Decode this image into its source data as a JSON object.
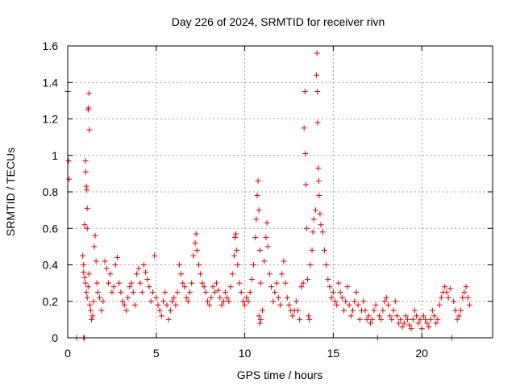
{
  "chart_data": {
    "type": "scatter",
    "title": "Day 226 of 2024, SRMTID for receiver rivn",
    "xlabel": "GPS time / hours",
    "ylabel": "SRMTID / TECUs",
    "xlim": [
      0,
      24
    ],
    "ylim": [
      0,
      1.6
    ],
    "xticks": [
      0,
      5,
      10,
      15,
      20
    ],
    "xtick_labels": [
      "0",
      "5",
      "10",
      "15",
      "20"
    ],
    "yticks": [
      0,
      0.2,
      0.4,
      0.6,
      0.8,
      1.0,
      1.2,
      1.4,
      1.6
    ],
    "ytick_labels": [
      "0",
      "0.2",
      "0.4",
      "0.6",
      "0.8",
      "1",
      "1.2",
      "1.4",
      "1.6"
    ],
    "grid": true,
    "marker": "+",
    "color": "#e00000",
    "series": [
      {
        "name": "SRMTID",
        "points": [
          [
            0.0,
            1.35
          ],
          [
            0.05,
            0.97
          ],
          [
            0.08,
            0.87
          ],
          [
            0.5,
            0.0
          ],
          [
            0.9,
            0.0
          ],
          [
            0.95,
            0.0
          ],
          [
            0.85,
            0.45
          ],
          [
            0.9,
            0.4
          ],
          [
            0.95,
            0.62
          ],
          [
            1.0,
            0.97
          ],
          [
            1.02,
            0.91
          ],
          [
            1.05,
            0.83
          ],
          [
            1.08,
            0.81
          ],
          [
            1.1,
            0.6
          ],
          [
            1.15,
            1.25
          ],
          [
            1.18,
            1.26
          ],
          [
            1.2,
            1.34
          ],
          [
            1.22,
            1.14
          ],
          [
            1.1,
            0.71
          ],
          [
            0.9,
            0.36
          ],
          [
            0.95,
            0.33
          ],
          [
            1.0,
            0.3
          ],
          [
            1.05,
            0.25
          ],
          [
            1.1,
            0.22
          ],
          [
            1.15,
            0.28
          ],
          [
            1.2,
            0.35
          ],
          [
            1.25,
            0.18
          ],
          [
            1.3,
            0.15
          ],
          [
            1.35,
            0.1
          ],
          [
            1.4,
            0.12
          ],
          [
            1.45,
            0.2
          ],
          [
            1.5,
            0.5
          ],
          [
            1.55,
            0.56
          ],
          [
            1.6,
            0.42
          ],
          [
            1.65,
            0.3
          ],
          [
            1.7,
            0.25
          ],
          [
            1.8,
            0.22
          ],
          [
            1.9,
            0.15
          ],
          [
            2.0,
            0.2
          ],
          [
            2.1,
            0.42
          ],
          [
            2.2,
            0.38
          ],
          [
            2.3,
            0.3
          ],
          [
            2.4,
            0.35
          ],
          [
            2.5,
            0.25
          ],
          [
            2.6,
            0.28
          ],
          [
            2.7,
            0.4
          ],
          [
            2.8,
            0.44
          ],
          [
            2.9,
            0.3
          ],
          [
            3.0,
            0.25
          ],
          [
            3.1,
            0.2
          ],
          [
            3.2,
            0.18
          ],
          [
            3.3,
            0.15
          ],
          [
            3.4,
            0.22
          ],
          [
            3.5,
            0.28
          ],
          [
            3.6,
            0.3
          ],
          [
            3.7,
            0.25
          ],
          [
            3.8,
            0.18
          ],
          [
            3.9,
            0.35
          ],
          [
            4.0,
            0.38
          ],
          [
            4.1,
            0.3
          ],
          [
            4.2,
            0.25
          ],
          [
            4.3,
            0.4
          ],
          [
            4.4,
            0.36
          ],
          [
            4.5,
            0.32
          ],
          [
            4.6,
            0.28
          ],
          [
            4.7,
            0.2
          ],
          [
            4.8,
            0.25
          ],
          [
            4.9,
            0.45
          ],
          [
            5.0,
            0.22
          ],
          [
            5.1,
            0.18
          ],
          [
            5.2,
            0.15
          ],
          [
            5.3,
            0.12
          ],
          [
            5.4,
            0.2
          ],
          [
            5.5,
            0.25
          ],
          [
            5.6,
            0.18
          ],
          [
            5.7,
            0.1
          ],
          [
            5.8,
            0.15
          ],
          [
            5.9,
            0.2
          ],
          [
            6.0,
            0.22
          ],
          [
            6.1,
            0.18
          ],
          [
            6.2,
            0.25
          ],
          [
            6.3,
            0.4
          ],
          [
            6.4,
            0.35
          ],
          [
            6.5,
            0.3
          ],
          [
            6.6,
            0.28
          ],
          [
            6.7,
            0.22
          ],
          [
            6.8,
            0.2
          ],
          [
            6.9,
            0.25
          ],
          [
            7.0,
            0.3
          ],
          [
            7.1,
            0.45
          ],
          [
            7.2,
            0.52
          ],
          [
            7.25,
            0.57
          ],
          [
            7.3,
            0.48
          ],
          [
            7.4,
            0.4
          ],
          [
            7.5,
            0.35
          ],
          [
            7.6,
            0.3
          ],
          [
            7.7,
            0.28
          ],
          [
            7.8,
            0.25
          ],
          [
            7.9,
            0.2
          ],
          [
            8.0,
            0.18
          ],
          [
            8.1,
            0.22
          ],
          [
            8.2,
            0.28
          ],
          [
            8.3,
            0.25
          ],
          [
            8.4,
            0.3
          ],
          [
            8.5,
            0.26
          ],
          [
            8.6,
            0.22
          ],
          [
            8.7,
            0.18
          ],
          [
            8.8,
            0.2
          ],
          [
            8.9,
            0.25
          ],
          [
            9.0,
            0.22
          ],
          [
            9.1,
            0.2
          ],
          [
            9.2,
            0.28
          ],
          [
            9.3,
            0.35
          ],
          [
            9.4,
            0.45
          ],
          [
            9.45,
            0.55
          ],
          [
            9.5,
            0.57
          ],
          [
            9.55,
            0.48
          ],
          [
            9.6,
            0.4
          ],
          [
            9.7,
            0.3
          ],
          [
            9.8,
            0.25
          ],
          [
            9.9,
            0.2
          ],
          [
            10.0,
            0.18
          ],
          [
            10.1,
            0.22
          ],
          [
            10.2,
            0.2
          ],
          [
            10.3,
            0.25
          ],
          [
            10.4,
            0.32
          ],
          [
            10.5,
            0.4
          ],
          [
            10.6,
            0.55
          ],
          [
            10.65,
            0.65
          ],
          [
            10.7,
            0.78
          ],
          [
            10.75,
            0.86
          ],
          [
            10.8,
            0.7
          ],
          [
            10.85,
            0.48
          ],
          [
            10.9,
            0.3
          ],
          [
            10.8,
            0.12
          ],
          [
            10.85,
            0.08
          ],
          [
            10.9,
            0.1
          ],
          [
            11.0,
            0.15
          ],
          [
            11.1,
            0.42
          ],
          [
            11.2,
            0.55
          ],
          [
            11.25,
            0.63
          ],
          [
            11.3,
            0.5
          ],
          [
            11.4,
            0.35
          ],
          [
            11.5,
            0.28
          ],
          [
            11.6,
            0.2
          ],
          [
            11.7,
            0.25
          ],
          [
            11.8,
            0.3
          ],
          [
            11.9,
            0.22
          ],
          [
            12.0,
            0.18
          ],
          [
            12.1,
            0.35
          ],
          [
            12.2,
            0.42
          ],
          [
            12.3,
            0.3
          ],
          [
            12.4,
            0.22
          ],
          [
            12.5,
            0.18
          ],
          [
            12.6,
            0.15
          ],
          [
            12.7,
            0.12
          ],
          [
            12.8,
            0.15
          ],
          [
            12.9,
            0.2
          ],
          [
            13.0,
            0.15
          ],
          [
            13.1,
            0.1
          ],
          [
            13.2,
            0.28
          ],
          [
            13.3,
            0.3
          ],
          [
            13.35,
            1.15
          ],
          [
            13.4,
            1.35
          ],
          [
            13.42,
            1.01
          ],
          [
            13.45,
            0.84
          ],
          [
            13.5,
            0.6
          ],
          [
            13.55,
            0.32
          ],
          [
            13.6,
            0.12
          ],
          [
            13.65,
            0.1
          ],
          [
            13.7,
            0.4
          ],
          [
            13.8,
            0.48
          ],
          [
            13.85,
            0.58
          ],
          [
            13.9,
            0.65
          ],
          [
            14.0,
            0.7
          ],
          [
            14.05,
            1.44
          ],
          [
            14.08,
            1.56
          ],
          [
            14.1,
            1.35
          ],
          [
            14.12,
            1.18
          ],
          [
            14.15,
            0.93
          ],
          [
            14.18,
            0.86
          ],
          [
            14.2,
            0.78
          ],
          [
            14.25,
            0.68
          ],
          [
            14.3,
            0.62
          ],
          [
            14.4,
            0.58
          ],
          [
            14.5,
            0.48
          ],
          [
            14.6,
            0.4
          ],
          [
            14.7,
            0.32
          ],
          [
            14.8,
            0.28
          ],
          [
            14.9,
            0.22
          ],
          [
            15.0,
            0.25
          ],
          [
            15.1,
            0.2
          ],
          [
            15.2,
            0.18
          ],
          [
            15.3,
            0.3
          ],
          [
            15.4,
            0.25
          ],
          [
            15.5,
            0.22
          ],
          [
            15.6,
            0.15
          ],
          [
            15.7,
            0.2
          ],
          [
            15.8,
            0.28
          ],
          [
            15.9,
            0.18
          ],
          [
            16.0,
            0.12
          ],
          [
            16.1,
            0.15
          ],
          [
            16.2,
            0.2
          ],
          [
            16.3,
            0.25
          ],
          [
            16.4,
            0.18
          ],
          [
            16.5,
            0.1
          ],
          [
            16.6,
            0.15
          ],
          [
            16.7,
            0.2
          ],
          [
            16.8,
            0.15
          ],
          [
            16.9,
            0.1
          ],
          [
            17.0,
            0.12
          ],
          [
            17.1,
            0.08
          ],
          [
            17.2,
            0.1
          ],
          [
            17.3,
            0.15
          ],
          [
            17.4,
            0.18
          ],
          [
            17.5,
            0.0
          ],
          [
            17.6,
            0.12
          ],
          [
            17.7,
            0.1
          ],
          [
            17.8,
            0.15
          ],
          [
            17.9,
            0.2
          ],
          [
            18.0,
            0.22
          ],
          [
            18.1,
            0.18
          ],
          [
            18.2,
            0.12
          ],
          [
            18.3,
            0.1
          ],
          [
            18.4,
            0.15
          ],
          [
            18.5,
            0.2
          ],
          [
            18.6,
            0.12
          ],
          [
            18.7,
            0.08
          ],
          [
            18.8,
            0.1
          ],
          [
            18.9,
            0.06
          ],
          [
            19.0,
            0.08
          ],
          [
            19.1,
            0.12
          ],
          [
            19.2,
            0.1
          ],
          [
            19.3,
            0.07
          ],
          [
            19.4,
            0.05
          ],
          [
            19.5,
            0.1
          ],
          [
            19.6,
            0.15
          ],
          [
            19.7,
            0.12
          ],
          [
            19.8,
            0.08
          ],
          [
            19.9,
            0.1
          ],
          [
            20.0,
            0.05
          ],
          [
            20.1,
            0.12
          ],
          [
            20.2,
            0.1
          ],
          [
            20.3,
            0.08
          ],
          [
            20.4,
            0.06
          ],
          [
            20.5,
            0.1
          ],
          [
            20.6,
            0.15
          ],
          [
            20.7,
            0.12
          ],
          [
            20.8,
            0.08
          ],
          [
            20.9,
            0.1
          ],
          [
            21.0,
            0.18
          ],
          [
            21.1,
            0.22
          ],
          [
            21.2,
            0.25
          ],
          [
            21.3,
            0.28
          ],
          [
            21.4,
            0.25
          ],
          [
            21.5,
            0.22
          ],
          [
            21.6,
            0.27
          ],
          [
            21.7,
            0.0
          ],
          [
            21.8,
            0.2
          ],
          [
            21.9,
            0.15
          ],
          [
            22.0,
            0.1
          ],
          [
            22.1,
            0.12
          ],
          [
            22.2,
            0.15
          ],
          [
            22.3,
            0.22
          ],
          [
            22.4,
            0.25
          ],
          [
            22.5,
            0.28
          ],
          [
            22.6,
            0.22
          ],
          [
            22.7,
            0.18
          ]
        ]
      }
    ]
  }
}
